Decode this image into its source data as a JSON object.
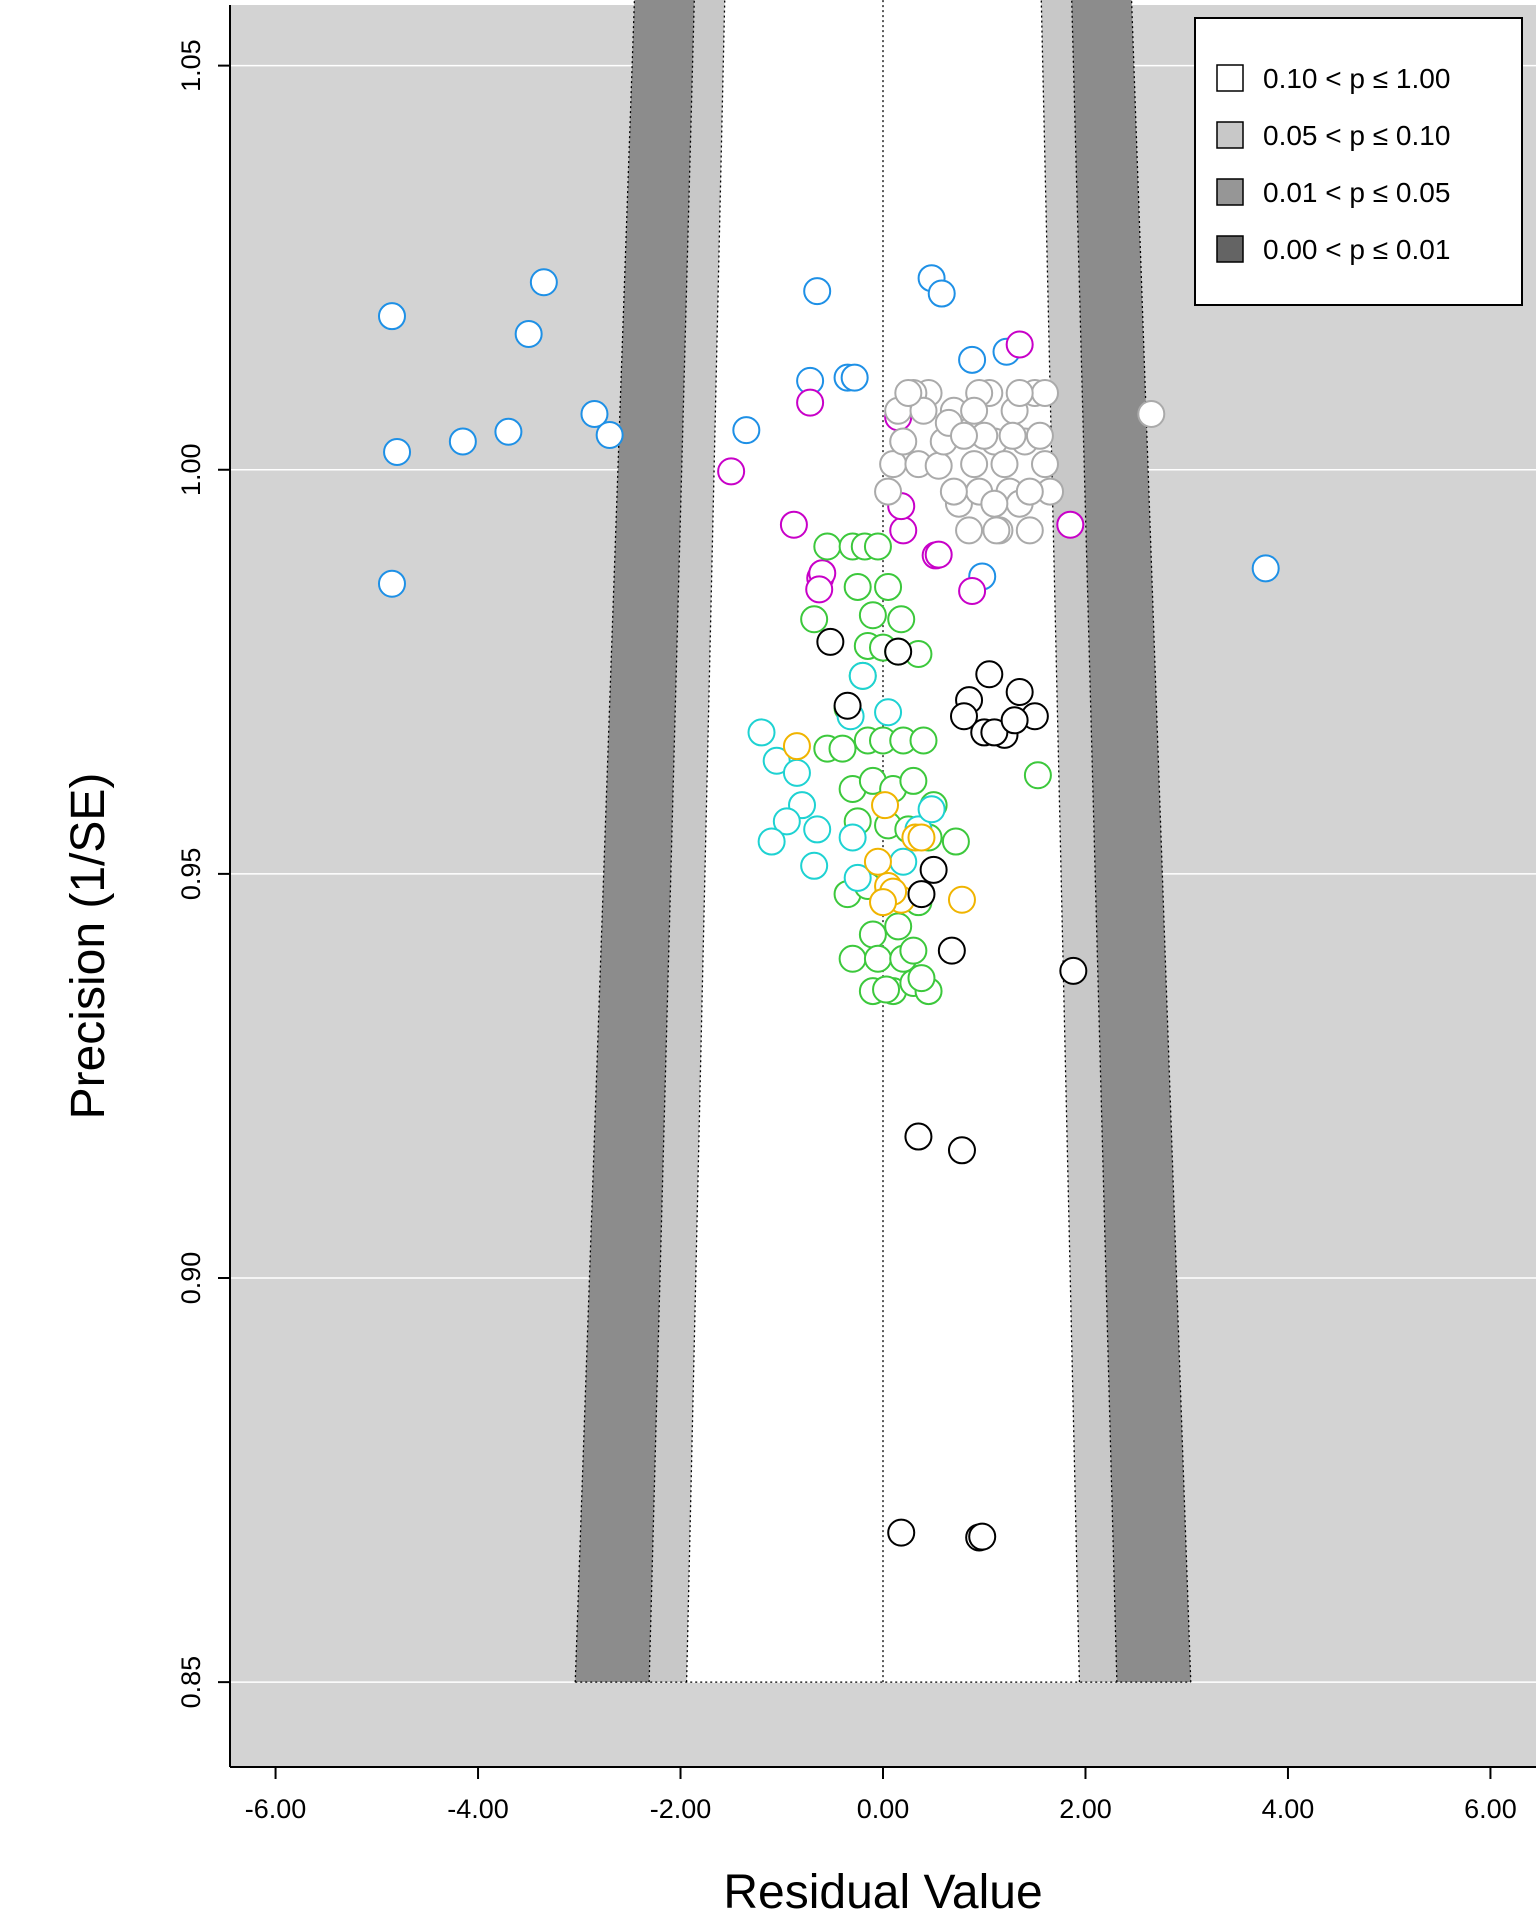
{
  "chart_data": {
    "type": "scatter",
    "subtype": "contour-enhanced funnel plot",
    "title": "",
    "xlabel": "Residual Value",
    "ylabel": "Precision (1/SE)",
    "xlim": [
      -6.45,
      6.45
    ],
    "ylim": [
      0.8395,
      1.0575
    ],
    "x_ticks": [
      -6,
      -4,
      -2,
      0,
      2,
      4,
      6
    ],
    "x_tick_labels": [
      "-6.00",
      "-4.00",
      "-2.00",
      "0.00",
      "2.00",
      "4.00",
      "6.00"
    ],
    "y_ticks": [
      0.85,
      0.9,
      0.95,
      1.0,
      1.05
    ],
    "y_tick_labels": [
      "0.85",
      "0.90",
      "0.95",
      "1.00",
      "1.05"
    ],
    "grid": "horizontal",
    "background_color": "#d3d3d3",
    "funnel": {
      "precision_range": [
        0.85,
        1.06
      ],
      "center": 0,
      "bounds_at_min_precision": {
        "p10": 1.94,
        "p05": 2.31,
        "p01": 3.04
      },
      "bounds_at_max_precision": {
        "p10": 1.56,
        "p05": 1.86,
        "p01": 2.45
      }
    },
    "legend": {
      "position": "top-right",
      "entries": [
        {
          "label": "0.10 < p ≤ 1.00",
          "color": "#ffffff"
        },
        {
          "label": "0.05 < p ≤ 0.10",
          "color": "#c8c8c8"
        },
        {
          "label": "0.01 < p ≤ 0.05",
          "color": "#969696"
        },
        {
          "label": "0.00 < p ≤ 0.01",
          "color": "#646464"
        }
      ]
    },
    "series": [
      {
        "color": "#1e90e6",
        "points": [
          [
            -4.85,
            1.019
          ],
          [
            -4.8,
            1.0022
          ],
          [
            -4.15,
            1.0035
          ],
          [
            -3.7,
            1.0047
          ],
          [
            -3.35,
            1.0232
          ],
          [
            -3.5,
            1.0168
          ],
          [
            -2.85,
            1.0069
          ],
          [
            -2.7,
            1.0043
          ],
          [
            -1.35,
            1.0049
          ],
          [
            -0.65,
            1.0221
          ],
          [
            -0.72,
            1.011
          ],
          [
            -0.35,
            1.0114
          ],
          [
            -0.28,
            1.0114
          ],
          [
            0.48,
            1.0237
          ],
          [
            0.58,
            1.0218
          ],
          [
            0.88,
            1.0136
          ],
          [
            1.22,
            1.0146
          ],
          [
            -4.85,
            0.9859
          ],
          [
            3.78,
            0.9878
          ],
          [
            0.98,
            0.9868
          ]
        ]
      },
      {
        "color": "#c800c8",
        "points": [
          [
            1.35,
            1.0155
          ],
          [
            -0.72,
            1.0083
          ],
          [
            -1.5,
            0.9998
          ],
          [
            -0.88,
            0.9932
          ],
          [
            0.2,
            0.9925
          ],
          [
            0.18,
            0.9955
          ],
          [
            0.52,
            0.9894
          ],
          [
            0.55,
            0.9895
          ],
          [
            -0.62,
            0.9866
          ],
          [
            -0.6,
            0.9872
          ],
          [
            -0.63,
            0.9852
          ],
          [
            0.88,
            0.985
          ],
          [
            1.85,
            0.9932
          ],
          [
            0.15,
            1.0065
          ]
        ]
      },
      {
        "color": "#aaaaaa",
        "points": [
          [
            2.65,
            1.0069
          ],
          [
            0.05,
            0.9973
          ],
          [
            0.1,
            1.0007
          ],
          [
            0.15,
            1.0073
          ],
          [
            0.2,
            1.0035
          ],
          [
            0.35,
            1.0007
          ],
          [
            0.45,
            1.0095
          ],
          [
            0.55,
            1.0005
          ],
          [
            0.6,
            1.0035
          ],
          [
            0.7,
            1.0073
          ],
          [
            0.75,
            0.9958
          ],
          [
            0.85,
            0.9925
          ],
          [
            0.9,
            1.0007
          ],
          [
            0.95,
            0.9973
          ],
          [
            1.05,
            1.0095
          ],
          [
            1.1,
            1.0035
          ],
          [
            1.15,
            0.9925
          ],
          [
            1.2,
            1.0007
          ],
          [
            1.25,
            0.9973
          ],
          [
            1.3,
            1.0073
          ],
          [
            1.35,
            0.9958
          ],
          [
            1.4,
            1.0035
          ],
          [
            1.45,
            0.9925
          ],
          [
            1.5,
            1.0095
          ],
          [
            1.55,
            1.0042
          ],
          [
            1.6,
            1.0007
          ],
          [
            1.65,
            0.9973
          ],
          [
            0.3,
            1.0095
          ],
          [
            0.65,
            1.0058
          ],
          [
            1.0,
            1.0042
          ],
          [
            1.12,
            0.9925
          ],
          [
            0.95,
            1.0095
          ],
          [
            1.28,
            1.0042
          ],
          [
            0.8,
            1.0042
          ],
          [
            1.45,
            0.9973
          ],
          [
            0.4,
            1.0073
          ],
          [
            0.25,
            1.0095
          ],
          [
            1.6,
            1.0095
          ],
          [
            0.9,
            1.0073
          ],
          [
            1.1,
            0.9958
          ],
          [
            1.35,
            1.0095
          ],
          [
            0.7,
            0.9973
          ]
        ]
      },
      {
        "color": "#3cc83c",
        "points": [
          [
            -0.55,
            0.9905
          ],
          [
            -0.3,
            0.9905
          ],
          [
            -0.18,
            0.9905
          ],
          [
            -0.05,
            0.9905
          ],
          [
            -0.68,
            0.9815
          ],
          [
            -0.25,
            0.9855
          ],
          [
            -0.1,
            0.982
          ],
          [
            0.05,
            0.9855
          ],
          [
            0.18,
            0.9815
          ],
          [
            -0.15,
            0.9782
          ],
          [
            0.0,
            0.978
          ],
          [
            0.15,
            0.9775
          ],
          [
            0.35,
            0.9772
          ],
          [
            -0.2,
            0.9745
          ],
          [
            -0.35,
            0.9705
          ],
          [
            -0.55,
            0.9655
          ],
          [
            -0.4,
            0.9655
          ],
          [
            -0.15,
            0.9665
          ],
          [
            0.0,
            0.9665
          ],
          [
            0.2,
            0.9665
          ],
          [
            0.4,
            0.9665
          ],
          [
            -0.3,
            0.9605
          ],
          [
            -0.1,
            0.9615
          ],
          [
            0.1,
            0.9605
          ],
          [
            0.3,
            0.9615
          ],
          [
            0.5,
            0.9585
          ],
          [
            -0.25,
            0.9565
          ],
          [
            0.05,
            0.956
          ],
          [
            0.25,
            0.9555
          ],
          [
            0.45,
            0.9545
          ],
          [
            0.72,
            0.954
          ],
          [
            -0.35,
            0.9475
          ],
          [
            -0.15,
            0.9485
          ],
          [
            0.05,
            0.9475
          ],
          [
            0.35,
            0.9465
          ],
          [
            -0.1,
            0.9425
          ],
          [
            0.15,
            0.9435
          ],
          [
            -0.3,
            0.9395
          ],
          [
            -0.05,
            0.9395
          ],
          [
            0.2,
            0.9395
          ],
          [
            0.3,
            0.9405
          ],
          [
            -0.1,
            0.9355
          ],
          [
            0.1,
            0.9355
          ],
          [
            0.3,
            0.9365
          ],
          [
            0.45,
            0.9355
          ],
          [
            1.53,
            0.9622
          ],
          [
            0.38,
            0.9371
          ],
          [
            0.03,
            0.9357
          ]
        ]
      },
      {
        "color": "#1ed2d2",
        "points": [
          [
            -1.2,
            0.9675
          ],
          [
            -1.05,
            0.964
          ],
          [
            -0.85,
            0.9625
          ],
          [
            -0.8,
            0.9585
          ],
          [
            -0.95,
            0.9565
          ],
          [
            -1.1,
            0.954
          ],
          [
            -0.65,
            0.9555
          ],
          [
            -0.68,
            0.951
          ],
          [
            -0.3,
            0.9545
          ],
          [
            -0.25,
            0.9495
          ],
          [
            -0.32,
            0.9695
          ],
          [
            -0.2,
            0.9745
          ],
          [
            0.05,
            0.97
          ],
          [
            0.2,
            0.9515
          ],
          [
            0.35,
            0.9555
          ],
          [
            0.48,
            0.958
          ]
        ]
      },
      {
        "color": "#f0b400",
        "points": [
          [
            -0.85,
            0.9658
          ],
          [
            0.02,
            0.9585
          ],
          [
            0.32,
            0.9545
          ],
          [
            0.38,
            0.9545
          ],
          [
            -0.05,
            0.9515
          ],
          [
            0.05,
            0.9485
          ],
          [
            0.18,
            0.9468
          ],
          [
            0.1,
            0.9478
          ],
          [
            0.0,
            0.9465
          ],
          [
            0.78,
            0.9468
          ]
        ]
      },
      {
        "color": "#000000",
        "points": [
          [
            -0.52,
            0.9787
          ],
          [
            0.15,
            0.9775
          ],
          [
            -0.35,
            0.9708
          ],
          [
            1.05,
            0.9747
          ],
          [
            0.85,
            0.9715
          ],
          [
            1.35,
            0.9725
          ],
          [
            1.5,
            0.9695
          ],
          [
            0.8,
            0.9695
          ],
          [
            1.0,
            0.9675
          ],
          [
            1.2,
            0.9672
          ],
          [
            1.1,
            0.9675
          ],
          [
            1.3,
            0.969
          ],
          [
            0.5,
            0.9505
          ],
          [
            0.38,
            0.9475
          ],
          [
            0.68,
            0.9405
          ],
          [
            1.88,
            0.938
          ],
          [
            0.35,
            0.9175
          ],
          [
            0.78,
            0.9158
          ],
          [
            0.18,
            0.8685
          ],
          [
            0.95,
            0.8679
          ],
          [
            0.98,
            0.868
          ]
        ]
      }
    ]
  }
}
